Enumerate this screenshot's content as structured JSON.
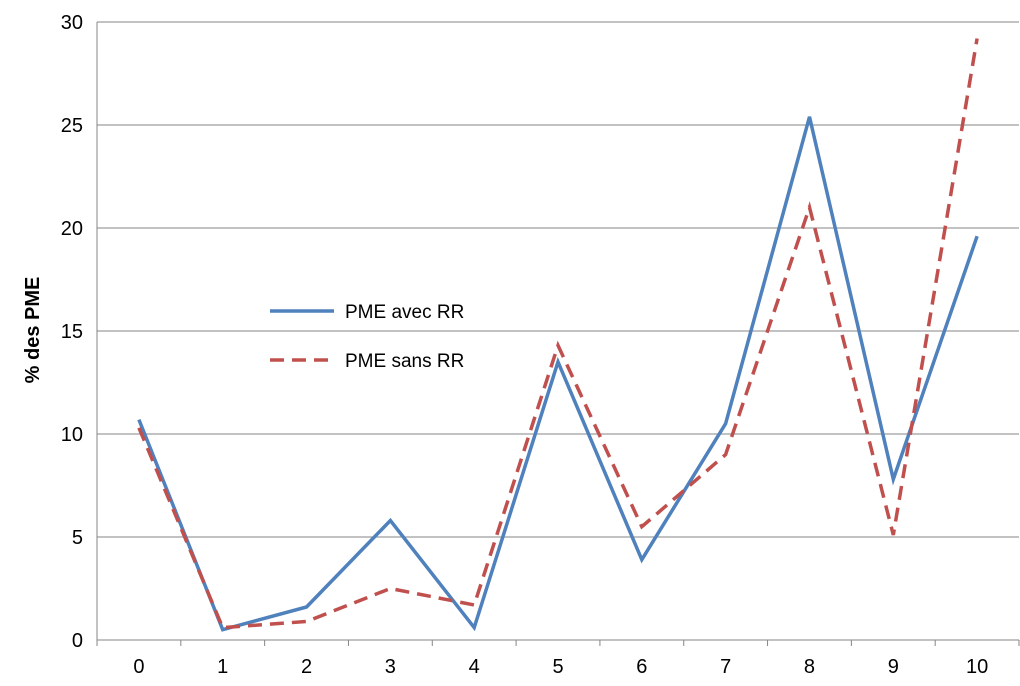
{
  "chart_data": {
    "type": "line",
    "title": "",
    "xlabel": "",
    "ylabel": "% des PME",
    "categories": [
      "0",
      "1",
      "2",
      "3",
      "4",
      "5",
      "6",
      "7",
      "8",
      "9",
      "10"
    ],
    "ylim": [
      0,
      30
    ],
    "yticks": [
      0,
      5,
      10,
      15,
      20,
      25,
      30
    ],
    "grid": true,
    "legend_position": "center-left",
    "series": [
      {
        "name": "PME avec RR",
        "color": "#4F81BD",
        "style": "solid",
        "values": [
          10.7,
          0.5,
          1.6,
          5.8,
          0.6,
          13.5,
          3.9,
          10.5,
          25.4,
          7.8,
          19.6
        ]
      },
      {
        "name": "PME sans RR",
        "color": "#C0504D",
        "style": "dashed",
        "values": [
          10.3,
          0.6,
          0.9,
          2.5,
          1.7,
          14.3,
          5.5,
          9.0,
          21.0,
          5.1,
          29.2
        ]
      }
    ]
  }
}
